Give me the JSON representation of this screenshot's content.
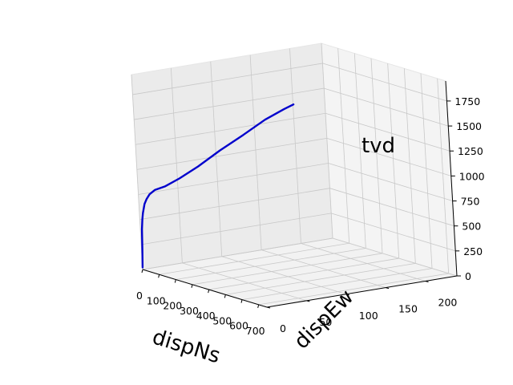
{
  "chart_data": {
    "type": "line3d",
    "title": "",
    "xlabel": "dispNs",
    "ylabel": "dispEw",
    "zlabel": "tvd",
    "x_ticks": [
      "0",
      "100",
      "200",
      "300",
      "400",
      "500",
      "600",
      "700"
    ],
    "y_ticks": [
      "0",
      "50",
      "100",
      "150",
      "200"
    ],
    "z_ticks": [
      "0",
      "250",
      "500",
      "750",
      "1000",
      "1250",
      "1500",
      "1750"
    ],
    "xlim": [
      0,
      750
    ],
    "ylim": [
      0,
      240
    ],
    "zlim": [
      0,
      1950
    ],
    "grid": true,
    "line_color": "#0000cc",
    "series": [
      {
        "x": [
          0,
          0,
          0,
          1,
          2,
          3,
          5,
          10,
          20,
          40,
          80,
          140,
          220,
          320,
          430,
          540,
          640,
          690
        ],
        "y": [
          0,
          1,
          2,
          3,
          4,
          5,
          6,
          8,
          10,
          13,
          18,
          24,
          32,
          40,
          48,
          54,
          58,
          60
        ],
        "z": [
          20,
          200,
          400,
          500,
          560,
          600,
          650,
          700,
          750,
          800,
          850,
          950,
          1100,
          1300,
          1500,
          1700,
          1850,
          1920
        ]
      }
    ]
  }
}
